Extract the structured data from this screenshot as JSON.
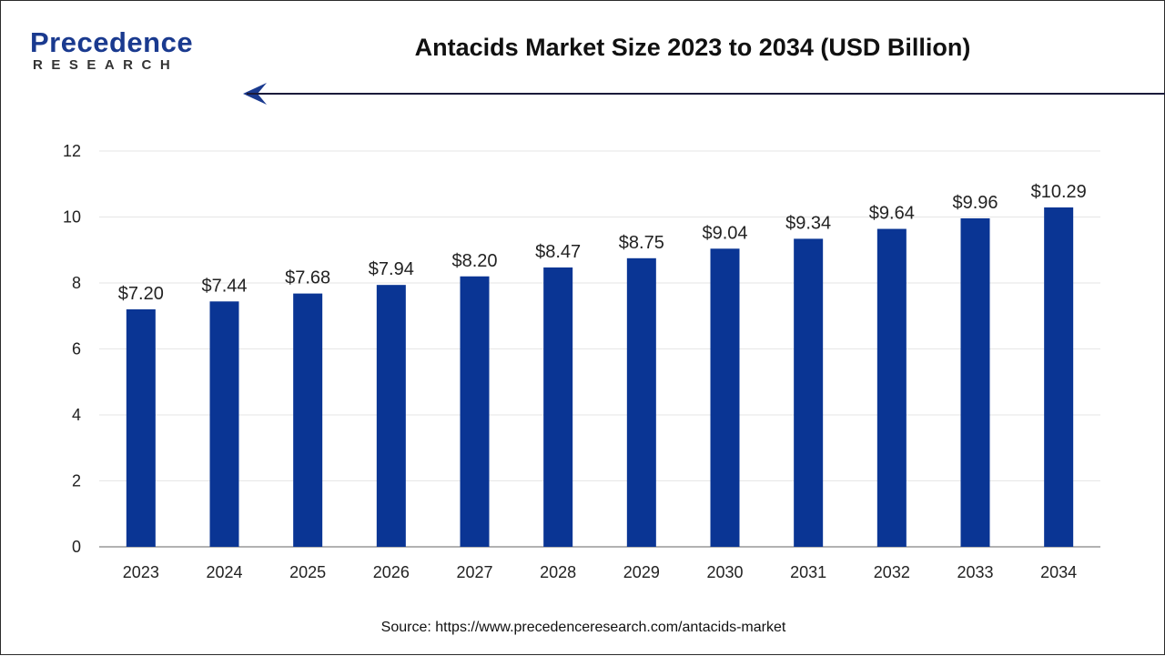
{
  "header": {
    "logo_word": "Precedence",
    "logo_sub": "RESEARCH",
    "title": "Antacids Market Size 2023 to 2034 (USD Billion)"
  },
  "footer": {
    "source": "Source: https://www.precedenceresearch.com/antacids-market"
  },
  "colors": {
    "bar": "#0a3594",
    "grid": "#e6e6e6",
    "axis": "#999999",
    "text": "#222222",
    "brand": "#1a3a8f"
  },
  "chart_data": {
    "type": "bar",
    "title": "Antacids Market Size 2023 to 2034 (USD Billion)",
    "xlabel": "",
    "ylabel": "",
    "categories": [
      "2023",
      "2024",
      "2025",
      "2026",
      "2027",
      "2028",
      "2029",
      "2030",
      "2031",
      "2032",
      "2033",
      "2034"
    ],
    "values": [
      7.2,
      7.44,
      7.68,
      7.94,
      8.2,
      8.47,
      8.75,
      9.04,
      9.34,
      9.64,
      9.96,
      10.29
    ],
    "data_labels": [
      "$7.20",
      "$7.44",
      "$7.68",
      "$7.94",
      "$8.20",
      "$8.47",
      "$8.75",
      "$9.04",
      "$9.34",
      "$9.64",
      "$9.96",
      "$10.29"
    ],
    "ylim": [
      0,
      12
    ],
    "yticks": [
      0,
      2,
      4,
      6,
      8,
      10,
      12
    ],
    "grid": true,
    "legend": "none"
  }
}
